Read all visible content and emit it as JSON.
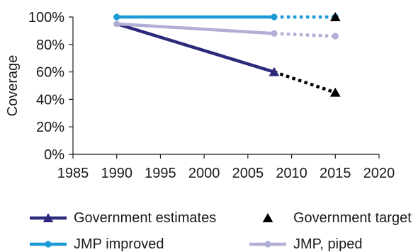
{
  "chart_data": {
    "type": "line",
    "ylabel": "Coverage",
    "xlim": [
      1985,
      2020
    ],
    "ylim": [
      0,
      100
    ],
    "x_ticks": [
      1985,
      1990,
      1995,
      2000,
      2005,
      2010,
      2015,
      2020
    ],
    "x_tick_labels": [
      "1985",
      "1990",
      "1995",
      "2000",
      "2005",
      "2010",
      "2015",
      "2020"
    ],
    "y_ticks": [
      0,
      20,
      40,
      60,
      80,
      100
    ],
    "y_tick_labels": [
      "0%",
      "20%",
      "40%",
      "60%",
      "80%",
      "100%"
    ],
    "grid": false,
    "legend_position": "bottom",
    "series": [
      {
        "name": "Government estimates",
        "color": "#2d2a7b",
        "line": "solid",
        "marker": "triangle",
        "x": [
          1990,
          2008
        ],
        "y": [
          95,
          60
        ],
        "marker_x": [
          2008
        ],
        "projection": {
          "x": [
            2008,
            2015
          ],
          "y": [
            60,
            45
          ],
          "color": "#000000",
          "line": "dotted",
          "marker_x": []
        }
      },
      {
        "name": "Government target",
        "color": "#000000",
        "line": "none",
        "marker": "triangle",
        "x": [
          2015,
          2015
        ],
        "y": [
          100,
          45
        ]
      },
      {
        "name": "JMP improved",
        "color": "#1b9ad6",
        "line": "solid",
        "marker": "circle",
        "x": [
          1990,
          2008
        ],
        "y": [
          100,
          100
        ],
        "projection": {
          "x": [
            2008,
            2015
          ],
          "y": [
            100,
            100
          ],
          "color": "#1b9ad6",
          "line": "dotted",
          "marker_x": [
            2015
          ]
        }
      },
      {
        "name": "JMP, piped",
        "color": "#b2afd7",
        "line": "solid",
        "marker": "circle",
        "x": [
          1990,
          2008
        ],
        "y": [
          95,
          88
        ],
        "projection": {
          "x": [
            2008,
            2015
          ],
          "y": [
            88,
            86
          ],
          "color": "#b2afd7",
          "line": "dotted",
          "marker_x": [
            2015
          ]
        }
      }
    ]
  }
}
